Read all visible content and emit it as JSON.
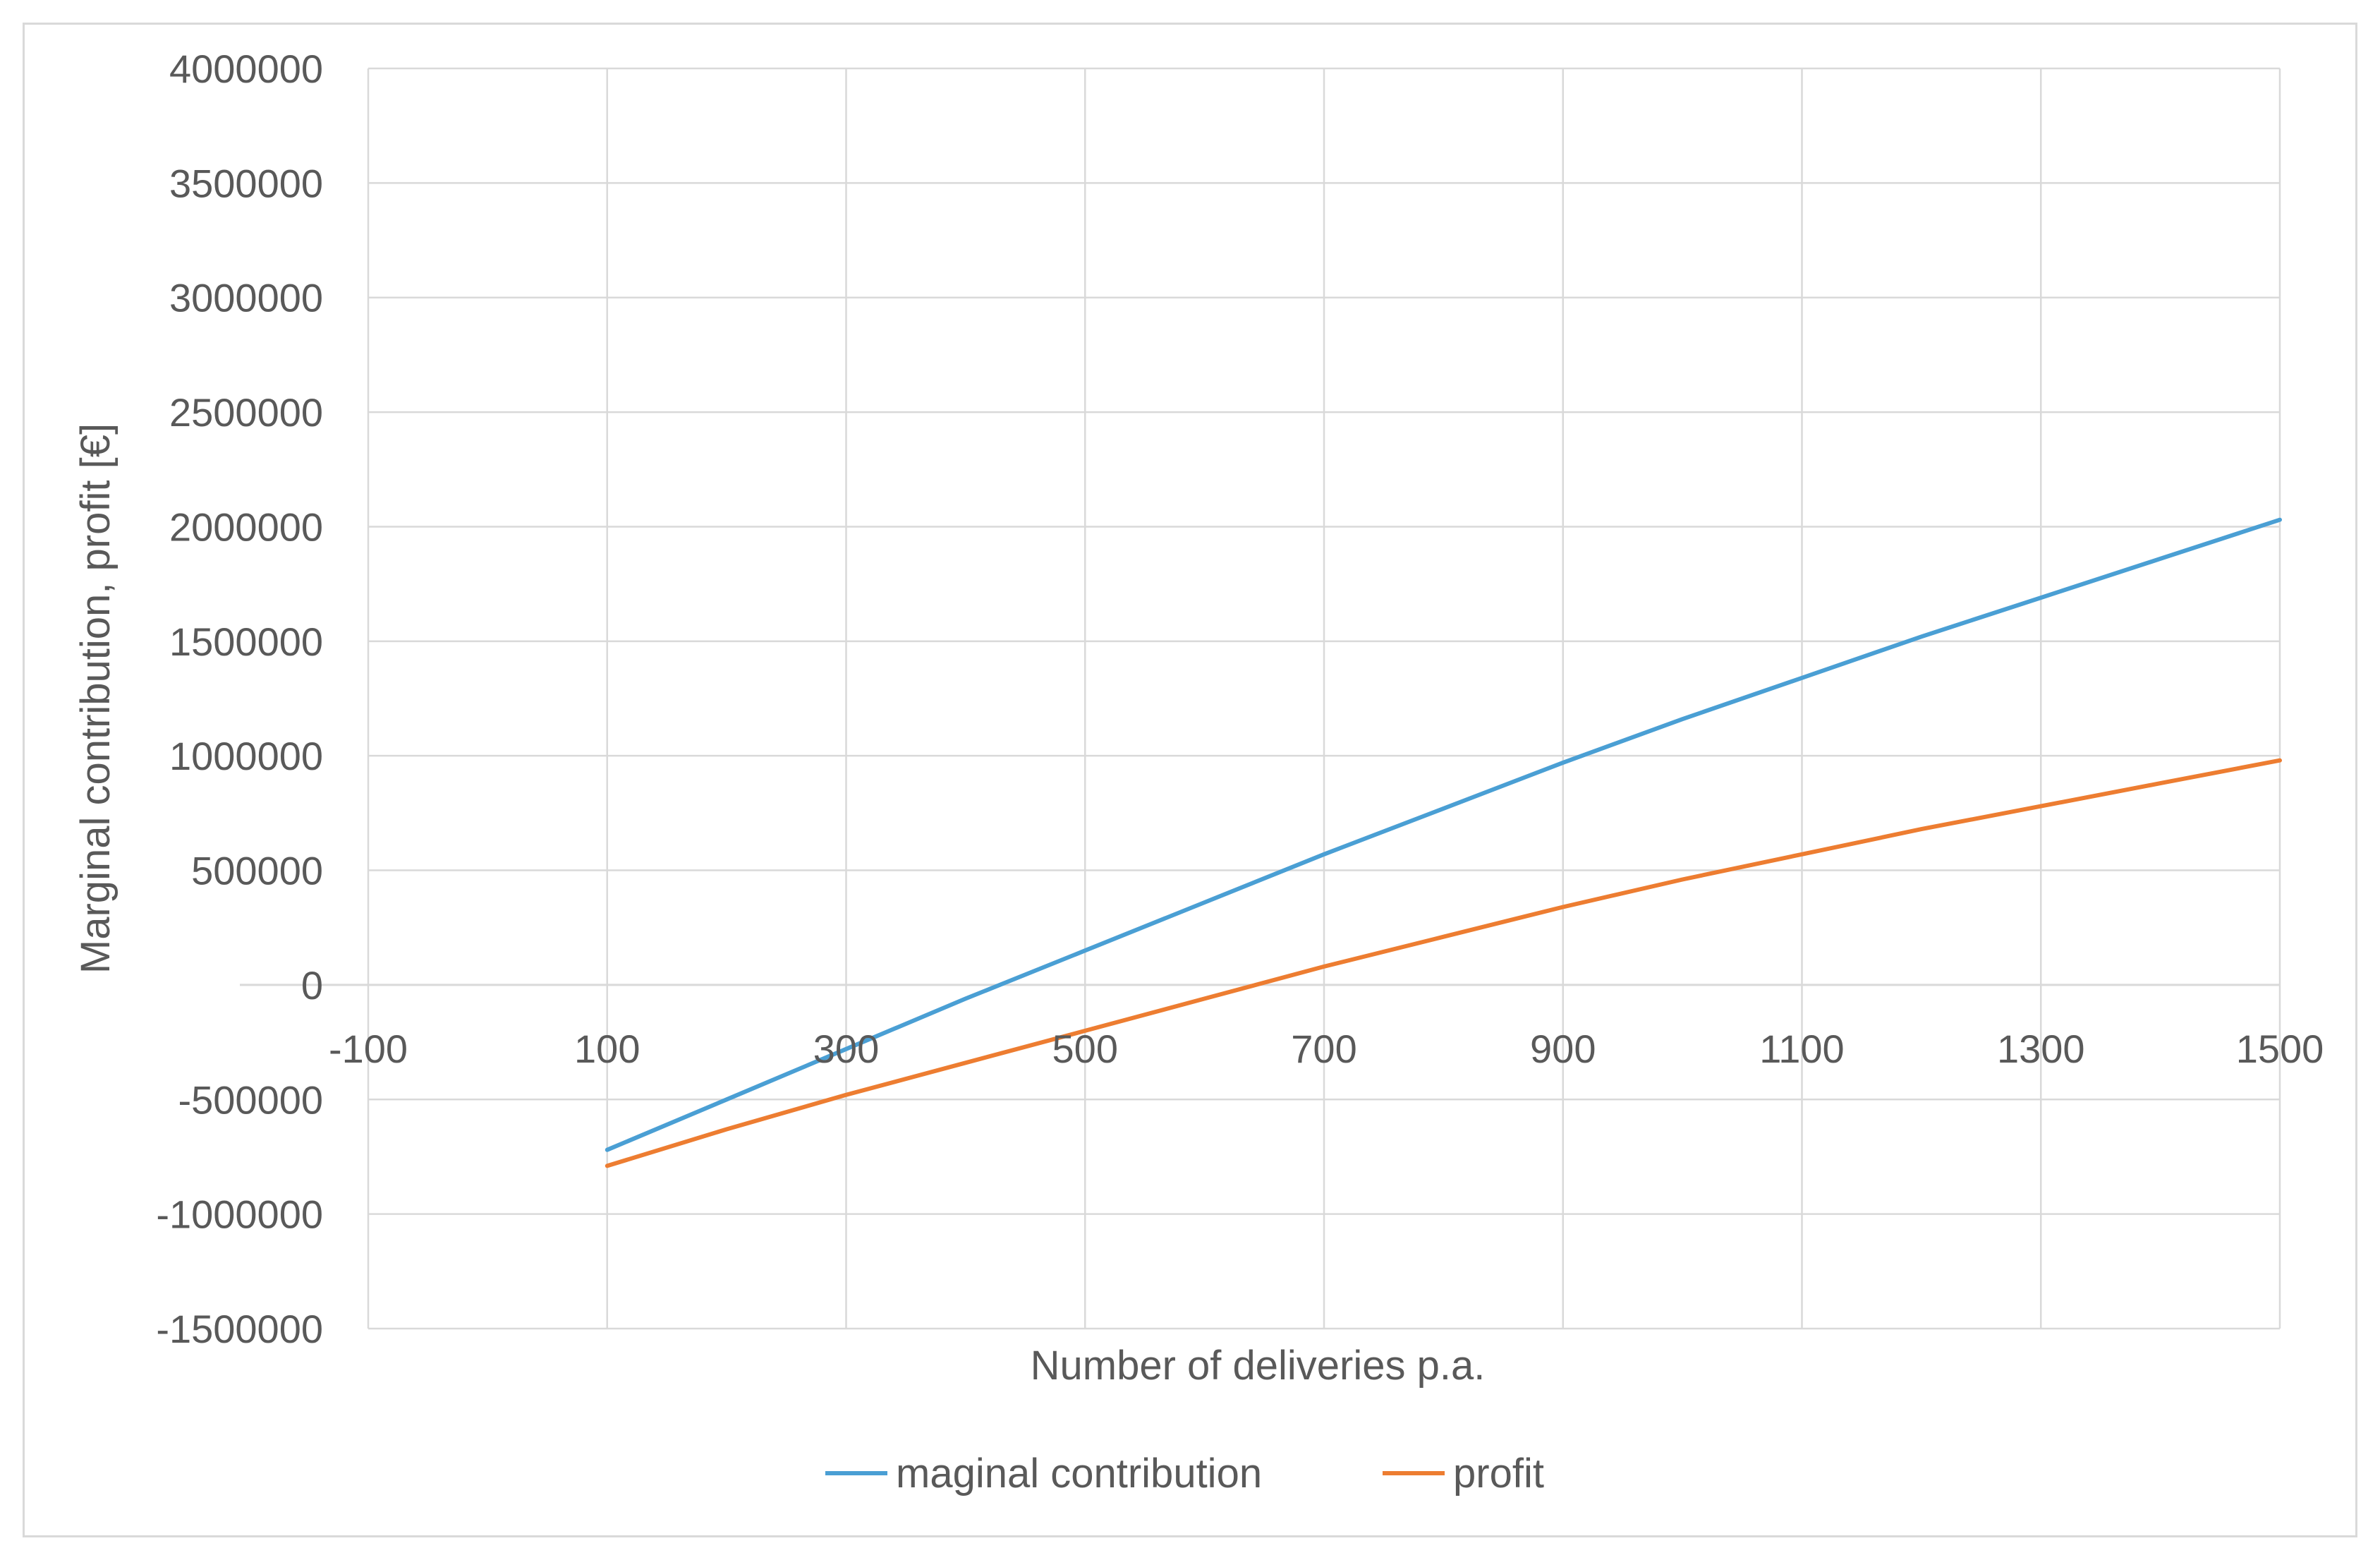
{
  "chart_data": {
    "type": "line",
    "title": "",
    "xlabel": "Number of deliveries p.a.",
    "ylabel": "Marginal contribution, profit [€]",
    "xlim": [
      -100,
      1500
    ],
    "ylim": [
      -1500000,
      4000000
    ],
    "x_ticks": [
      -100,
      100,
      300,
      500,
      700,
      900,
      1100,
      1300,
      1500
    ],
    "x_tick_labels": [
      "-100",
      "100",
      "300",
      "500",
      "700",
      "900",
      "1100",
      "1300",
      "1500"
    ],
    "y_ticks": [
      -1500000,
      -1000000,
      -500000,
      0,
      500000,
      1000000,
      1500000,
      2000000,
      2500000,
      3000000,
      3500000,
      4000000
    ],
    "y_tick_labels": [
      "-1500000",
      "-1000000",
      "-500000",
      "0",
      "500000",
      "1000000",
      "1500000",
      "2000000",
      "2500000",
      "3000000",
      "3500000",
      "4000000"
    ],
    "grid": true,
    "legend_position": "bottom",
    "series": [
      {
        "name": "maginal contribution",
        "color": "#4a9fd4",
        "points": [
          [
            100,
            -720000
          ],
          [
            200,
            -500000
          ],
          [
            300,
            -280000
          ],
          [
            400,
            -60000
          ],
          [
            500,
            150000
          ],
          [
            600,
            360000
          ],
          [
            700,
            570000
          ],
          [
            800,
            770000
          ],
          [
            900,
            970000
          ],
          [
            1000,
            1160000
          ],
          [
            1100,
            1340000
          ],
          [
            1200,
            1520000
          ],
          [
            1300,
            1690000
          ],
          [
            1400,
            1860000
          ],
          [
            1500,
            2030000
          ]
        ]
      },
      {
        "name": "profit",
        "color": "#ed7d31",
        "points": [
          [
            100,
            -790000
          ],
          [
            200,
            -630000
          ],
          [
            300,
            -480000
          ],
          [
            400,
            -340000
          ],
          [
            500,
            -200000
          ],
          [
            600,
            -60000
          ],
          [
            700,
            80000
          ],
          [
            800,
            210000
          ],
          [
            900,
            340000
          ],
          [
            1000,
            460000
          ],
          [
            1100,
            570000
          ],
          [
            1200,
            680000
          ],
          [
            1300,
            780000
          ],
          [
            1400,
            880000
          ],
          [
            1500,
            980000
          ]
        ]
      }
    ]
  }
}
